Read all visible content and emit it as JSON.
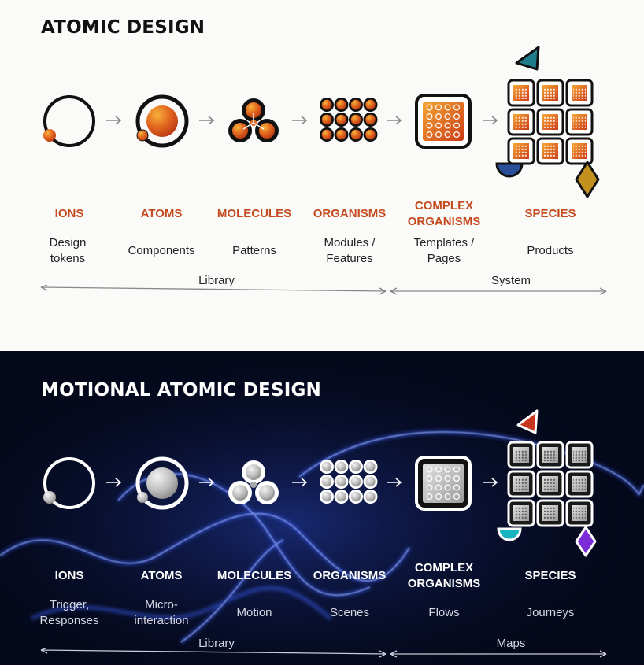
{
  "colors": {
    "accent_orange": "#c54a1e",
    "orange_light": "#f39c2a",
    "orange_dark": "#d3481a",
    "teal": "#1f7d8c",
    "navy": "#2a4f9a",
    "gold": "#c2901e",
    "red": "#c8371d",
    "cyan": "#18b3c0",
    "purple": "#7a2dd6",
    "dark_bg": "#04081a",
    "light_bg": "#fafaf9"
  },
  "top": {
    "title": "ATOMIC DESIGN",
    "levels": [
      {
        "name": "IONS",
        "desc": "Design tokens"
      },
      {
        "name": "ATOMS",
        "desc": "Components"
      },
      {
        "name": "MOLECULES",
        "desc": "Patterns"
      },
      {
        "name": "ORGANISMS",
        "desc": "Modules / Features"
      },
      {
        "name": "COMPLEX ORGANISMS",
        "desc": "Templates / Pages"
      },
      {
        "name": "SPECIES",
        "desc": "Products"
      }
    ],
    "span_left": "Library",
    "span_right": "System"
  },
  "bottom": {
    "title": "MOTIONAL ATOMIC DESIGN",
    "levels": [
      {
        "name": "IONS",
        "desc": "Trigger, Responses"
      },
      {
        "name": "ATOMS",
        "desc": "Micro-interaction"
      },
      {
        "name": "MOLECULES",
        "desc": "Motion"
      },
      {
        "name": "ORGANISMS",
        "desc": "Scenes"
      },
      {
        "name": "COMPLEX ORGANISMS",
        "desc": "Flows"
      },
      {
        "name": "SPECIES",
        "desc": "Journeys"
      }
    ],
    "span_left": "Library",
    "span_right": "Maps"
  },
  "icons": {
    "step1": "ion-icon",
    "step2": "atom-icon",
    "step3": "molecule-icon",
    "step4": "organism-icon",
    "step5": "complex-organism-icon",
    "step6": "species-icon",
    "connector": "arrow-right-icon"
  }
}
